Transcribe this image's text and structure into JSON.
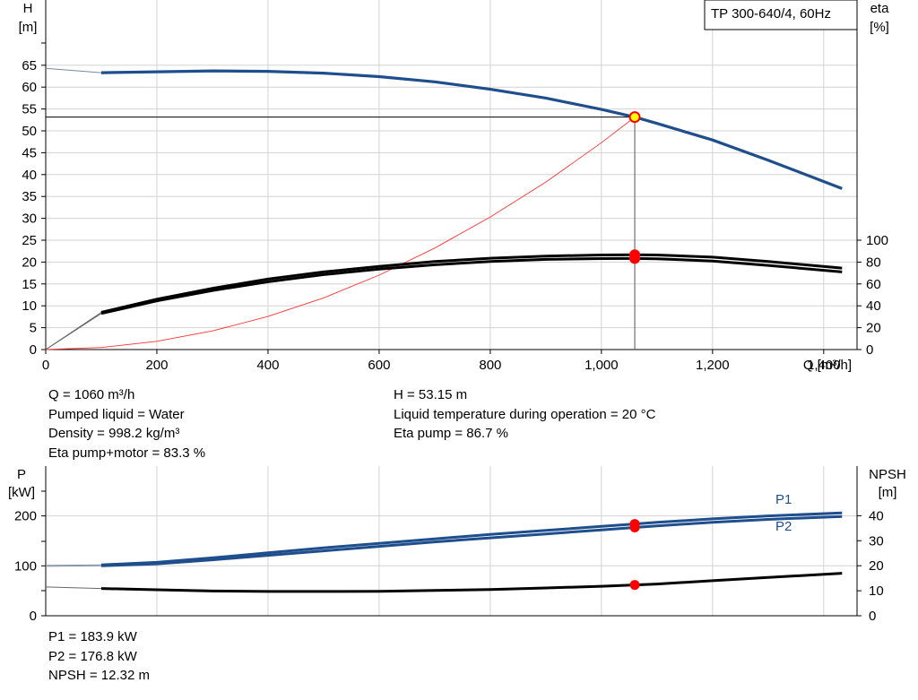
{
  "title": "TP 300-640/4, 60Hz",
  "top_chart": {
    "y_left_label": [
      "H",
      "[m]"
    ],
    "y_right_label": [
      "eta",
      "[%]"
    ],
    "x_label": "Q [m³/h]",
    "x_ticks": [
      "0",
      "200",
      "400",
      "600",
      "800",
      "1,000",
      "1,200",
      "1,400"
    ],
    "y_left_ticks": [
      "0",
      "5",
      "10",
      "15",
      "20",
      "25",
      "30",
      "35",
      "40",
      "45",
      "50",
      "55",
      "60",
      "65"
    ],
    "y_right_ticks": [
      "0",
      "20",
      "40",
      "60",
      "80",
      "100"
    ]
  },
  "bottom_chart": {
    "y_left_label": [
      "P",
      "[kW]"
    ],
    "y_right_label": [
      "NPSH",
      "[m]"
    ],
    "y_left_ticks": [
      "0",
      "100",
      "200"
    ],
    "y_right_ticks": [
      "0",
      "10",
      "20",
      "30",
      "40"
    ],
    "series_labels": [
      "P1",
      "P2"
    ]
  },
  "info_left": [
    "Q = 1060 m³/h",
    "Pumped liquid = Water",
    "Density = 998.2 kg/m³",
    "Eta pump+motor = 83.3 %"
  ],
  "info_right": [
    "H = 53.15 m",
    "Liquid temperature during operation = 20 °C",
    "Eta pump = 86.7 %"
  ],
  "info_bottom": [
    "P1 = 183.9 kW",
    "P2 = 176.8 kW",
    "NPSH = 12.32 m"
  ],
  "colors": {
    "head": "#1f4e8c",
    "eta": "#000000",
    "system": "#ff3333",
    "duty_point": "#ff0000",
    "duty_fill": "#ffff00",
    "grid": "#d3d3d3"
  },
  "chart_data": [
    {
      "type": "line",
      "title": "TP 300-640/4, 60Hz",
      "xlabel": "Q [m³/h]",
      "ylabel": "H [m]",
      "y2label": "eta [%]",
      "xlim": [
        0,
        1460
      ],
      "ylim": [
        0,
        70
      ],
      "y2lim": [
        0,
        100
      ],
      "grid": true,
      "series": [
        {
          "axis": "left",
          "x": [
            0,
            100,
            200,
            300,
            400,
            500,
            600,
            700,
            800,
            900,
            1000,
            1060,
            1100,
            1200,
            1300,
            1433
          ],
          "y": [
            64.3,
            63.3,
            63.5,
            63.7,
            63.6,
            63.2,
            62.4,
            61.2,
            59.5,
            57.5,
            54.9,
            53.15,
            51.7,
            47.9,
            43.3,
            36.8
          ],
          "extrapolated_before": 100
        },
        {
          "axis": "right",
          "x": [
            0,
            100,
            200,
            300,
            400,
            500,
            600,
            700,
            800,
            900,
            1000,
            1060,
            1100,
            1200,
            1300,
            1433
          ],
          "y": [
            0,
            34,
            46,
            56,
            64.5,
            71,
            76,
            80.5,
            83.5,
            85.5,
            86.5,
            86.7,
            86.5,
            84.5,
            80.5,
            74.5
          ],
          "extrapolated_before": 100
        },
        {
          "axis": "right",
          "x": [
            0,
            100,
            200,
            300,
            400,
            500,
            600,
            700,
            800,
            900,
            1000,
            1060,
            1100,
            1200,
            1300,
            1433
          ],
          "y": [
            0,
            33,
            44.5,
            54,
            62,
            68.5,
            73.5,
            77.5,
            80.5,
            82.5,
            83.2,
            83.3,
            83,
            81,
            77,
            71
          ],
          "extrapolated_before": 100
        },
        {
          "axis": "left",
          "x": [
            0,
            100,
            200,
            300,
            400,
            500,
            600,
            700,
            800,
            900,
            1000,
            1060
          ],
          "y": [
            0,
            0.47,
            1.89,
            4.26,
            7.57,
            11.8,
            17.0,
            23.2,
            30.3,
            38.3,
            47.3,
            53.15
          ]
        }
      ],
      "duty_point": {
        "x": 1060,
        "y": 53.15
      },
      "eta_points": {
        "x": 1060,
        "y": [
          86.7,
          83.3
        ]
      }
    },
    {
      "type": "line",
      "ylabel": "P [kW]",
      "y2label": "NPSH [m]",
      "xlim": [
        0,
        1460
      ],
      "ylim": [
        0,
        250
      ],
      "y2lim": [
        0,
        50
      ],
      "grid": true,
      "series": [
        {
          "name": "P1",
          "axis": "left",
          "x": [
            0,
            100,
            200,
            300,
            400,
            500,
            600,
            700,
            800,
            900,
            1000,
            1060,
            1100,
            1200,
            1300,
            1433
          ],
          "y": [
            101,
            102,
            107,
            116,
            126,
            136,
            145,
            154,
            163,
            171,
            179,
            183.9,
            187,
            194,
            200,
            206
          ],
          "extrapolated_before": 100
        },
        {
          "name": "P2",
          "axis": "left",
          "x": [
            0,
            100,
            200,
            300,
            400,
            500,
            600,
            700,
            800,
            900,
            1000,
            1060,
            1100,
            1200,
            1300,
            1433
          ],
          "y": [
            99,
            100,
            104,
            112,
            121,
            130,
            139,
            148,
            156,
            164,
            172,
            176.8,
            180,
            187,
            193,
            199
          ],
          "extrapolated_before": 100
        },
        {
          "axis": "right",
          "x": [
            0,
            100,
            200,
            300,
            400,
            500,
            600,
            700,
            800,
            900,
            1000,
            1060,
            1100,
            1200,
            1300,
            1433
          ],
          "y": [
            11.5,
            10.9,
            10.4,
            9.9,
            9.7,
            9.7,
            9.8,
            10.1,
            10.5,
            11.1,
            11.8,
            12.32,
            12.7,
            14.0,
            15.3,
            17.0
          ],
          "extrapolated_before": 100
        }
      ],
      "duty_points": {
        "x": 1060,
        "P1": 183.9,
        "P2": 176.8,
        "NPSH": 12.32
      }
    }
  ]
}
